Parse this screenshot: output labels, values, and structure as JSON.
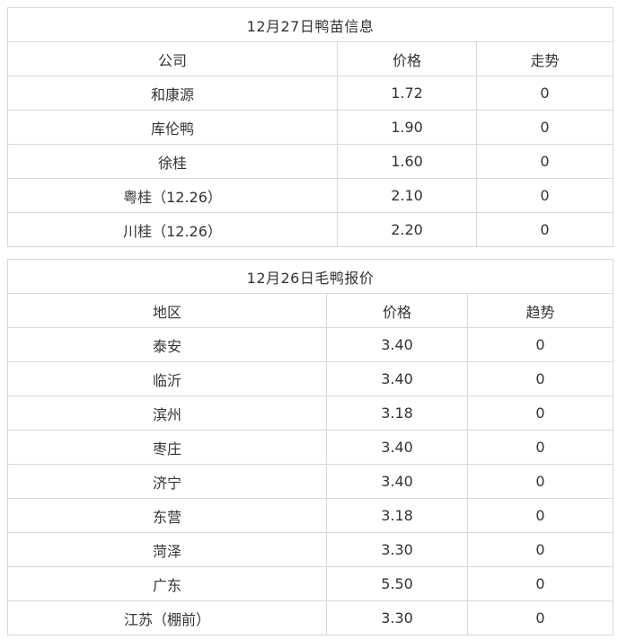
{
  "page": {
    "background_color": "#ffffff",
    "border_color": "#d9d9d9",
    "text_color": "#333333"
  },
  "tables": [
    {
      "title": "12月27日鸭苗信息",
      "headers": [
        "公司",
        "价格",
        "走势"
      ],
      "rows": [
        [
          "和康源",
          "1.72",
          "0"
        ],
        [
          "库伦鸭",
          "1.90",
          "0"
        ],
        [
          "徐桂",
          "1.60",
          "0"
        ],
        [
          "粤桂（12.26）",
          "2.10",
          "0"
        ],
        [
          "川桂（12.26）",
          "2.20",
          "0"
        ]
      ]
    },
    {
      "title": "12月26日毛鸭报价",
      "headers": [
        "地区",
        "价格",
        "趋势"
      ],
      "rows": [
        [
          "泰安",
          "3.40",
          "0"
        ],
        [
          "临沂",
          "3.40",
          "0"
        ],
        [
          "滨州",
          "3.18",
          "0"
        ],
        [
          "枣庄",
          "3.40",
          "0"
        ],
        [
          "济宁",
          "3.40",
          "0"
        ],
        [
          "东营",
          "3.18",
          "0"
        ],
        [
          "菏泽",
          "3.30",
          "0"
        ],
        [
          "广东",
          "5.50",
          "0"
        ],
        [
          "江苏（棚前）",
          "3.30",
          "0"
        ]
      ]
    }
  ]
}
